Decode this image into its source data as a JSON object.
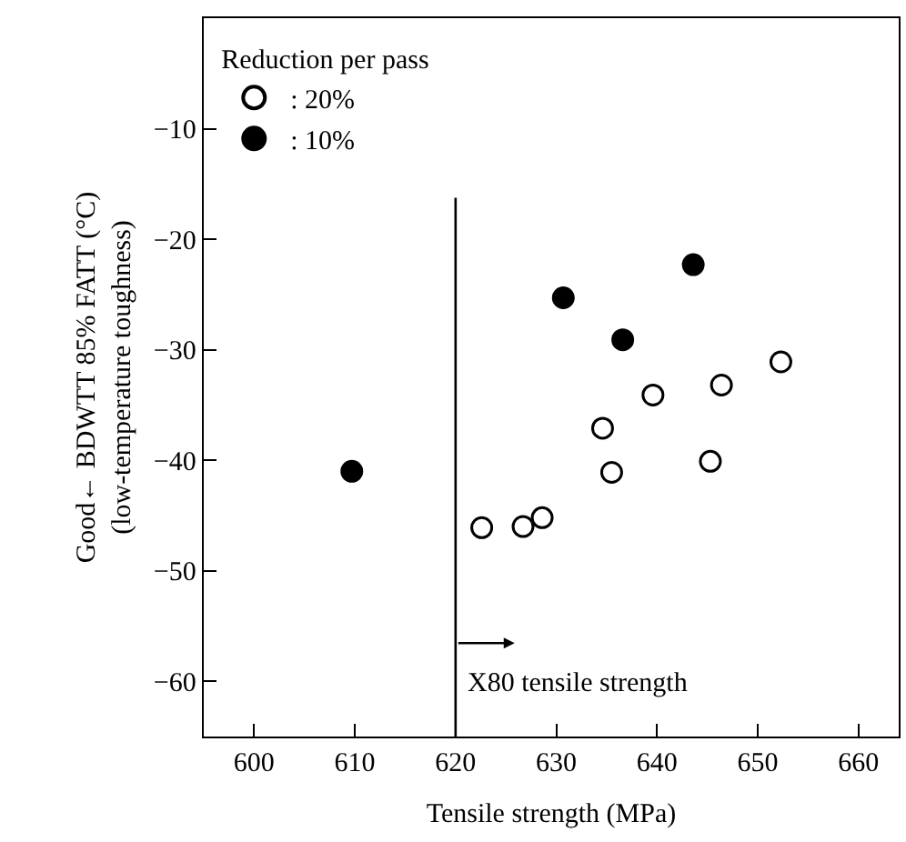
{
  "chart_data": {
    "type": "scatter",
    "xlabel": "Tensile strength (MPa)",
    "ylabel": "Good← BDWTT 85% FATT (°C)\n(low-temperature toughness)",
    "legend_title": "Reduction per pass",
    "legend": "top left",
    "marker": "circle",
    "grid": false,
    "xlim": [
      595,
      664
    ],
    "xticks": [
      600,
      610,
      620,
      630,
      640,
      650,
      660
    ],
    "ylim": [
      -65,
      0
    ],
    "yticks": [
      -10,
      -20,
      -30,
      -40,
      -50,
      -60
    ],
    "series": [
      {
        "name": ": 20%",
        "color": "#ffffff",
        "x": [
          622.6,
          626.7,
          628.6,
          634.6,
          635.5,
          639.6,
          645.3,
          646.4,
          652.3
        ],
        "values": [
          -46.1,
          -46,
          -45.2,
          -37.1,
          -41.1,
          -34.1,
          -40.1,
          -33.2,
          -31.1
        ]
      },
      {
        "name": ": 10%",
        "color": "#000000",
        "x": [
          609.7,
          630.7,
          636.6,
          643.6
        ],
        "values": [
          -41,
          -25.3,
          -29.1,
          -22.3
        ]
      }
    ],
    "ref_lines": [
      {
        "axis": "x",
        "value": 620,
        "label": "X80 tensile strength",
        "color": "#000000"
      }
    ]
  }
}
